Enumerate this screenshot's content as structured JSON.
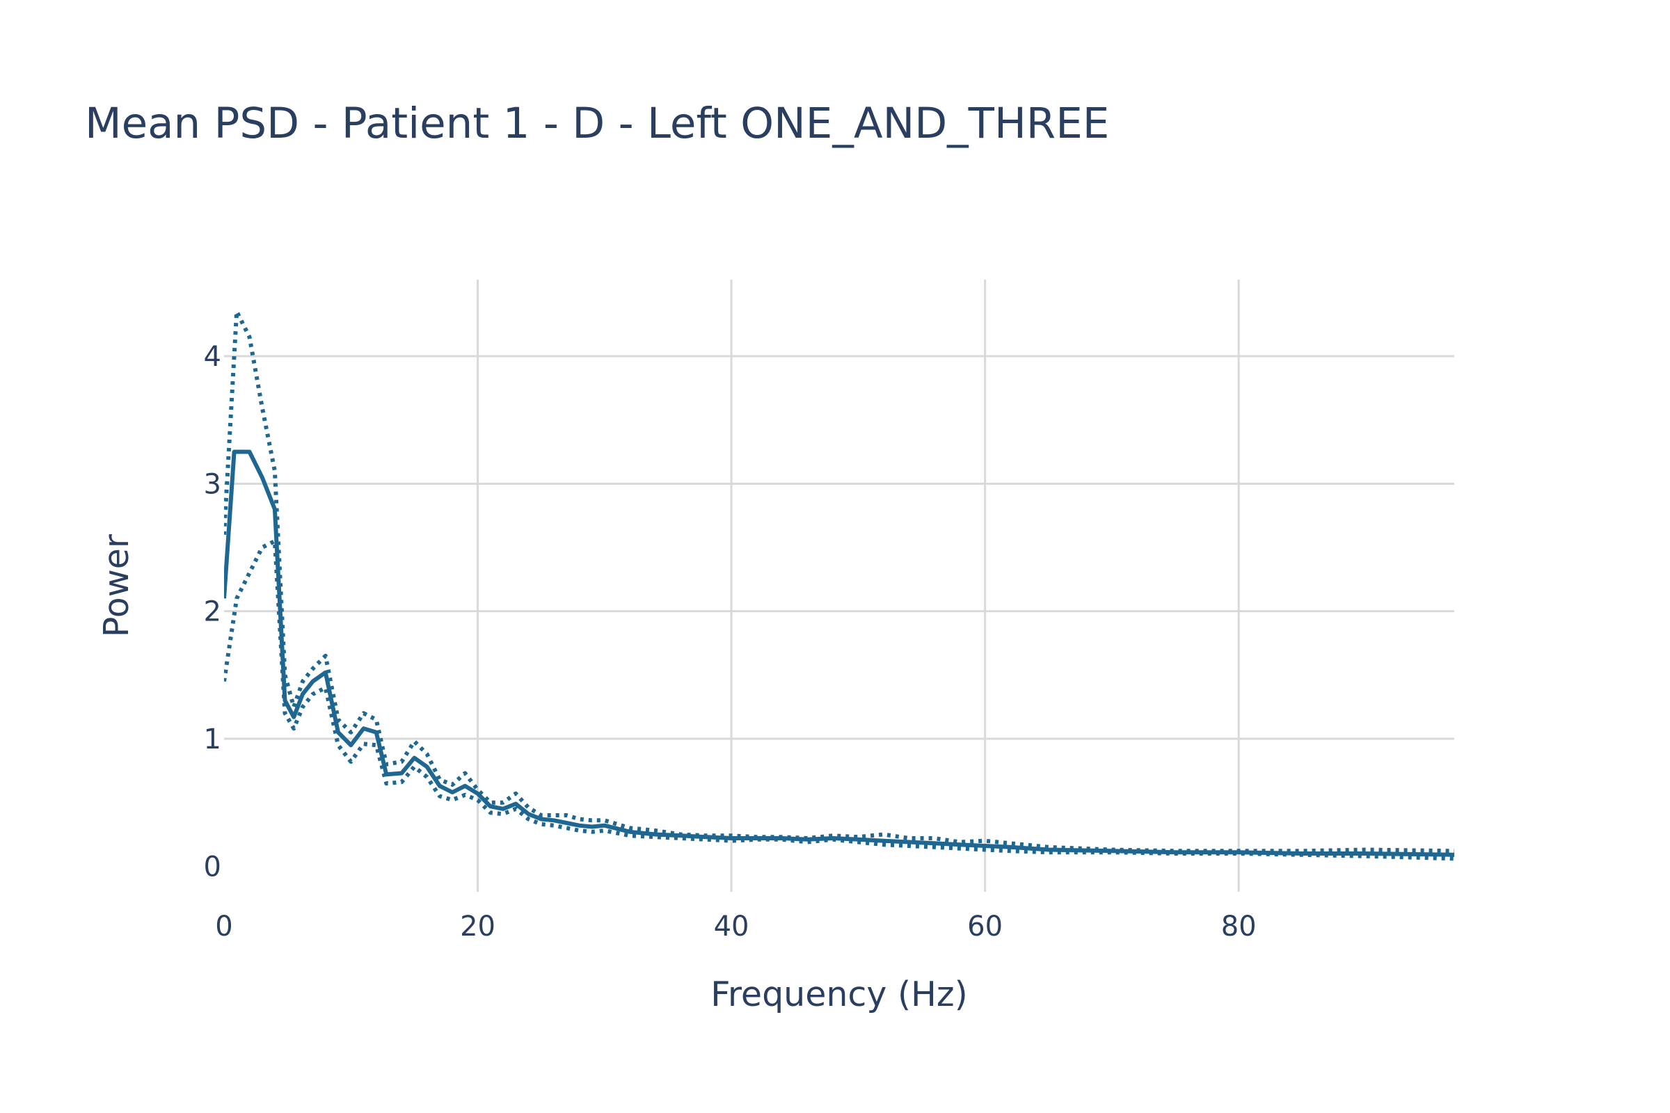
{
  "chart_data": {
    "type": "line",
    "title": "Mean PSD - Patient 1 - D - Left ONE_AND_THREE",
    "xlabel": "Frequency (Hz)",
    "ylabel": "Power",
    "xlim": [
      0,
      97
    ],
    "ylim": [
      -0.2,
      4.6
    ],
    "xticks": [
      0,
      20,
      40,
      60,
      80
    ],
    "yticks": [
      0,
      1,
      2,
      3,
      4
    ],
    "grid": true,
    "legend": "none",
    "color": "#1f6791",
    "series": [
      {
        "style": "solid",
        "x": [
          0,
          0.8,
          2,
          3,
          4,
          4.8,
          5.5,
          6.2,
          7,
          8,
          9,
          10,
          11,
          12,
          12.8,
          14,
          15,
          16,
          17,
          18,
          19,
          20,
          21,
          22,
          23,
          24,
          25,
          26,
          27,
          28,
          29,
          30,
          32,
          34,
          36,
          38,
          40,
          42,
          44,
          46,
          48,
          50,
          52,
          54,
          56,
          58,
          60,
          62,
          65,
          70,
          75,
          80,
          85,
          90,
          97
        ],
        "y": [
          2.1,
          3.25,
          3.25,
          3.05,
          2.8,
          1.3,
          1.17,
          1.35,
          1.45,
          1.52,
          1.05,
          0.95,
          1.08,
          1.05,
          0.72,
          0.73,
          0.85,
          0.78,
          0.63,
          0.58,
          0.63,
          0.57,
          0.47,
          0.45,
          0.49,
          0.41,
          0.37,
          0.36,
          0.34,
          0.32,
          0.31,
          0.32,
          0.27,
          0.25,
          0.24,
          0.23,
          0.22,
          0.22,
          0.22,
          0.21,
          0.22,
          0.21,
          0.2,
          0.19,
          0.18,
          0.17,
          0.16,
          0.15,
          0.13,
          0.12,
          0.11,
          0.11,
          0.1,
          0.1,
          0.09
        ]
      },
      {
        "style": "dotted",
        "x": [
          0,
          1,
          2,
          3,
          4,
          4.8,
          5.5,
          6.2,
          7,
          8,
          9,
          10,
          11,
          12,
          12.8,
          14,
          15,
          16,
          17,
          18,
          19,
          20,
          21,
          22,
          23,
          24,
          25,
          26,
          27,
          28,
          29,
          30,
          32,
          34,
          36,
          38,
          40,
          42,
          44,
          46,
          48,
          50,
          52,
          54,
          56,
          58,
          60,
          62,
          65,
          70,
          75,
          80,
          85,
          90,
          97
        ],
        "y": [
          2.6,
          4.35,
          4.15,
          3.6,
          3.1,
          1.5,
          1.25,
          1.45,
          1.55,
          1.65,
          1.15,
          1.05,
          1.2,
          1.15,
          0.8,
          0.82,
          0.98,
          0.88,
          0.68,
          0.64,
          0.73,
          0.6,
          0.5,
          0.5,
          0.57,
          0.46,
          0.4,
          0.4,
          0.4,
          0.37,
          0.36,
          0.36,
          0.3,
          0.28,
          0.25,
          0.24,
          0.24,
          0.23,
          0.23,
          0.22,
          0.24,
          0.23,
          0.25,
          0.22,
          0.22,
          0.19,
          0.2,
          0.18,
          0.15,
          0.13,
          0.12,
          0.12,
          0.12,
          0.13,
          0.12
        ]
      },
      {
        "style": "dotted",
        "x": [
          0,
          1,
          2,
          3,
          4,
          4.8,
          5.5,
          6.2,
          7,
          8,
          9,
          10,
          11,
          12,
          12.8,
          14,
          15,
          16,
          17,
          18,
          19,
          20,
          21,
          22,
          23,
          24,
          25,
          26,
          27,
          28,
          29,
          30,
          32,
          34,
          36,
          38,
          40,
          42,
          44,
          46,
          48,
          50,
          52,
          54,
          56,
          58,
          60,
          62,
          65,
          70,
          75,
          80,
          85,
          90,
          97
        ],
        "y": [
          1.45,
          2.1,
          2.3,
          2.5,
          2.55,
          1.2,
          1.08,
          1.25,
          1.35,
          1.4,
          0.95,
          0.82,
          0.96,
          0.95,
          0.65,
          0.66,
          0.78,
          0.7,
          0.55,
          0.52,
          0.56,
          0.52,
          0.42,
          0.41,
          0.45,
          0.37,
          0.33,
          0.32,
          0.3,
          0.28,
          0.27,
          0.28,
          0.24,
          0.23,
          0.22,
          0.21,
          0.2,
          0.21,
          0.21,
          0.19,
          0.21,
          0.19,
          0.17,
          0.16,
          0.15,
          0.14,
          0.13,
          0.12,
          0.11,
          0.11,
          0.1,
          0.1,
          0.09,
          0.08,
          0.06
        ]
      }
    ]
  }
}
